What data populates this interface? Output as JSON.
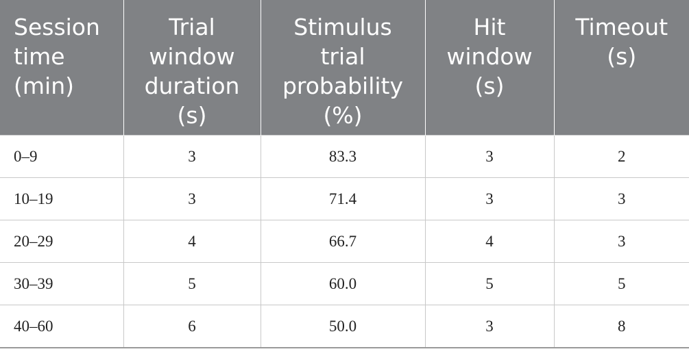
{
  "table": {
    "header": [
      [
        "Session",
        "time",
        "(min)"
      ],
      [
        "Trial",
        "window",
        "duration",
        "(s)"
      ],
      [
        "Stimulus",
        "trial",
        "probability",
        "(%)"
      ],
      [
        "Hit",
        "window",
        "(s)"
      ],
      [
        "Timeout",
        "(s)"
      ]
    ],
    "rows": [
      [
        "0–9",
        "3",
        "83.3",
        "3",
        "2"
      ],
      [
        "10–19",
        "3",
        "71.4",
        "3",
        "3"
      ],
      [
        "20–29",
        "4",
        "66.7",
        "4",
        "3"
      ],
      [
        "30–39",
        "5",
        "60.0",
        "5",
        "5"
      ],
      [
        "40–60",
        "6",
        "50.0",
        "3",
        "8"
      ]
    ]
  }
}
